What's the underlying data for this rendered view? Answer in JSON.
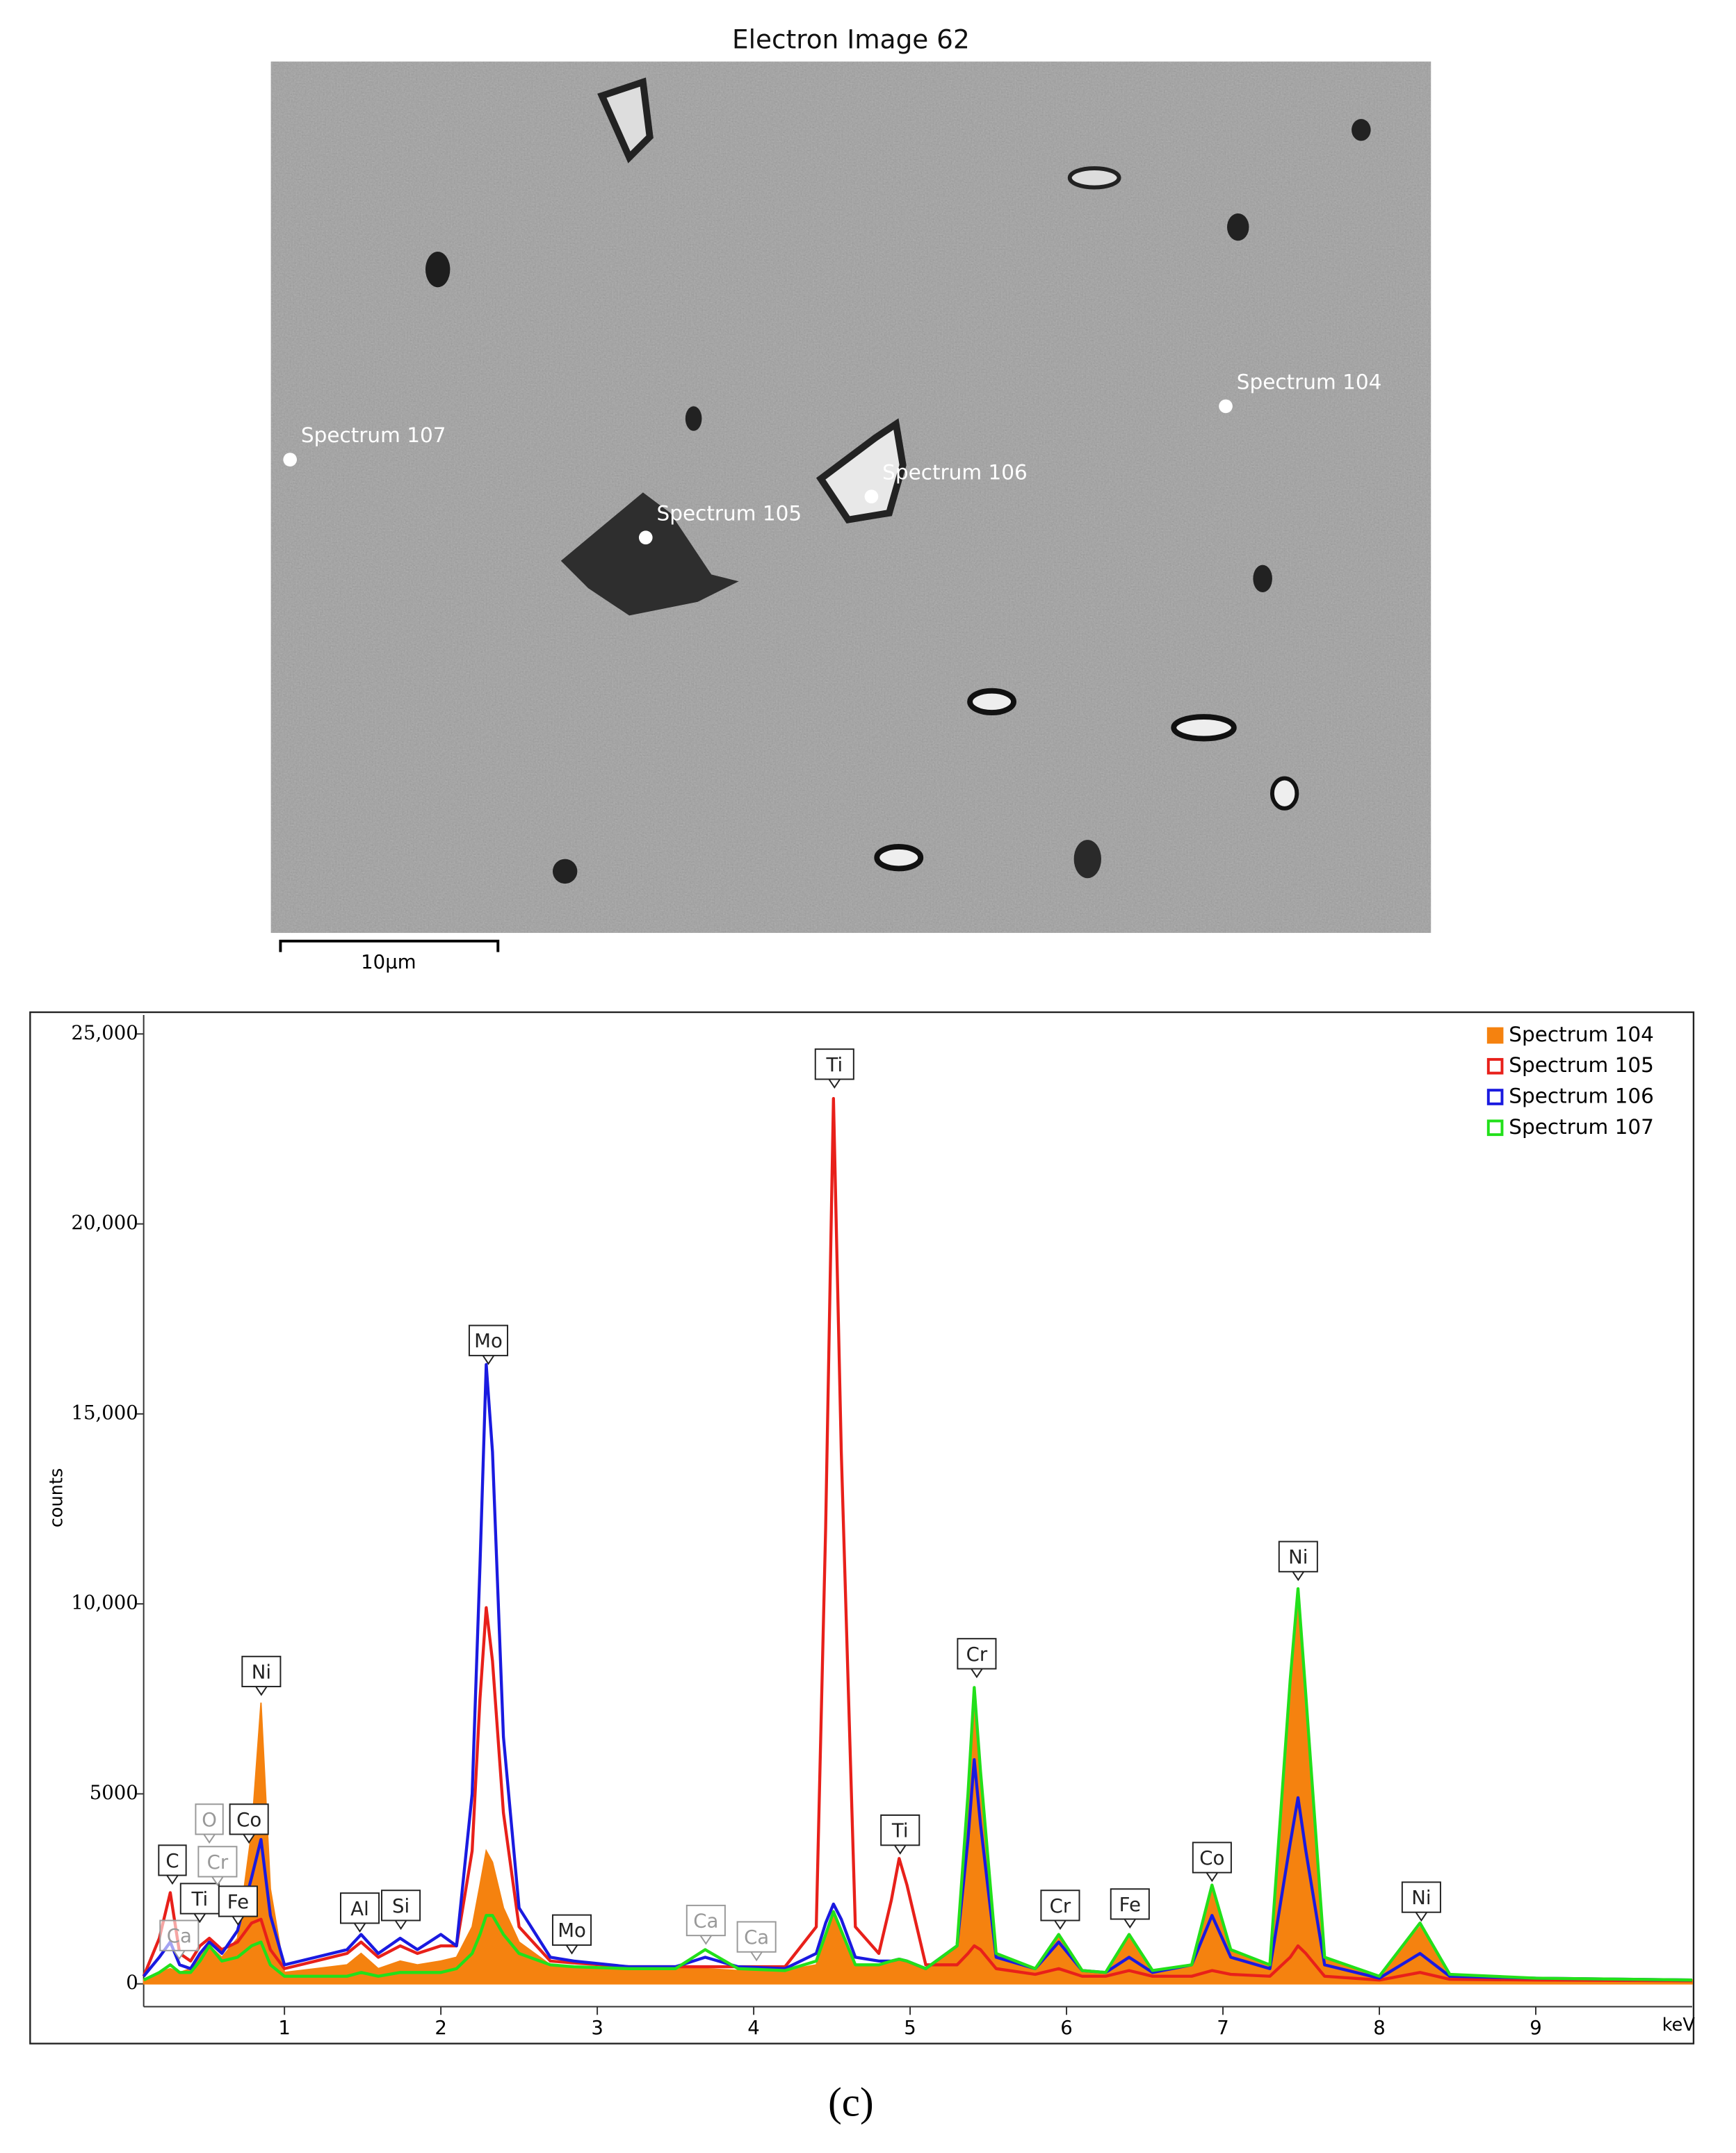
{
  "electron_image": {
    "title": "Electron Image 62",
    "spectrum_labels": [
      "Spectrum 104",
      "Spectrum 105",
      "Spectrum 106",
      "Spectrum 107"
    ],
    "scale_bar": "10µm"
  },
  "chart_data": {
    "type": "line",
    "y_label": "counts",
    "x_label": "keV",
    "x": [
      0.1,
      0.2,
      0.27,
      0.33,
      0.4,
      0.46,
      0.52,
      0.6,
      0.7,
      0.79,
      0.85,
      0.91,
      1.0,
      1.2,
      1.4,
      1.49,
      1.6,
      1.74,
      1.85,
      2.0,
      2.1,
      2.2,
      2.25,
      2.29,
      2.33,
      2.4,
      2.5,
      2.7,
      2.85,
      3.2,
      3.5,
      3.69,
      3.9,
      4.2,
      4.4,
      4.46,
      4.51,
      4.56,
      4.65,
      4.8,
      4.88,
      4.93,
      4.98,
      5.1,
      5.3,
      5.37,
      5.41,
      5.45,
      5.55,
      5.8,
      5.95,
      6.1,
      6.25,
      6.4,
      6.55,
      6.8,
      6.93,
      7.05,
      7.3,
      7.43,
      7.48,
      7.53,
      7.65,
      8.0,
      8.26,
      8.45,
      9.0,
      10.0
    ],
    "series": [
      {
        "name": "Spectrum 104",
        "color": "#f5820f",
        "area": true,
        "values": [
          100,
          300,
          400,
          300,
          400,
          800,
          1000,
          700,
          1200,
          4000,
          7400,
          2500,
          300,
          400,
          500,
          800,
          400,
          600,
          500,
          600,
          700,
          1500,
          2600,
          3500,
          3200,
          2000,
          1100,
          500,
          450,
          400,
          400,
          400,
          350,
          350,
          500,
          1300,
          1900,
          1400,
          500,
          500,
          550,
          600,
          550,
          400,
          1000,
          5000,
          7700,
          5500,
          800,
          400,
          1300,
          350,
          300,
          1200,
          350,
          500,
          2500,
          900,
          500,
          8000,
          10300,
          7500,
          700,
          200,
          1500,
          250,
          150,
          100
        ]
      },
      {
        "name": "Spectrum 105",
        "color": "#e8201a",
        "area": false,
        "values": [
          200,
          1200,
          2400,
          800,
          600,
          1000,
          1200,
          900,
          1100,
          1600,
          1700,
          900,
          400,
          600,
          800,
          1100,
          700,
          1000,
          800,
          1000,
          1000,
          3500,
          7500,
          9900,
          8500,
          4500,
          1500,
          600,
          550,
          450,
          450,
          450,
          450,
          450,
          1500,
          12000,
          23300,
          14000,
          1500,
          800,
          2200,
          3300,
          2600,
          500,
          500,
          800,
          1000,
          900,
          400,
          250,
          400,
          200,
          200,
          350,
          200,
          200,
          350,
          250,
          200,
          700,
          1000,
          800,
          200,
          100,
          300,
          120,
          100,
          80
        ]
      },
      {
        "name": "Spectrum 106",
        "color": "#1a1ae0",
        "area": false,
        "values": [
          200,
          700,
          1100,
          500,
          400,
          800,
          1100,
          800,
          1400,
          2800,
          3800,
          1800,
          500,
          700,
          900,
          1300,
          800,
          1200,
          900,
          1300,
          1000,
          5000,
          11000,
          16300,
          14000,
          6500,
          2000,
          700,
          600,
          450,
          450,
          700,
          450,
          400,
          800,
          1600,
          2100,
          1700,
          700,
          600,
          600,
          650,
          600,
          400,
          1000,
          3800,
          5900,
          4200,
          700,
          400,
          1100,
          350,
          300,
          700,
          300,
          500,
          1800,
          700,
          400,
          3700,
          4900,
          3500,
          500,
          150,
          800,
          200,
          150,
          100
        ]
      },
      {
        "name": "Spectrum 107",
        "color": "#22e01a",
        "area": false,
        "values": [
          100,
          300,
          500,
          300,
          300,
          600,
          1000,
          600,
          700,
          1000,
          1100,
          500,
          200,
          200,
          200,
          300,
          200,
          300,
          300,
          300,
          400,
          800,
          1300,
          1800,
          1800,
          1300,
          800,
          500,
          450,
          400,
          400,
          900,
          400,
          350,
          600,
          1300,
          1900,
          1400,
          500,
          500,
          600,
          650,
          600,
          400,
          1000,
          5000,
          7800,
          5600,
          800,
          400,
          1300,
          350,
          300,
          1300,
          350,
          500,
          2600,
          900,
          500,
          8000,
          10400,
          7600,
          700,
          200,
          1600,
          250,
          150,
          100
        ]
      }
    ],
    "xlim": [
      0.1,
      10.0
    ],
    "xticks": [
      1,
      2,
      3,
      4,
      5,
      6,
      7,
      8,
      9
    ],
    "ylim": [
      -600,
      25500
    ],
    "yticks": [
      0,
      5000,
      {
        "value": 10000,
        "label": "10,000"
      },
      {
        "value": 15000,
        "label": "15,000"
      },
      {
        "value": 20000,
        "label": "20,000"
      },
      {
        "value": 25000,
        "label": "25,000"
      }
    ],
    "legend": "top-right",
    "annotations": [
      "C",
      "Ca",
      "Ti",
      "O",
      "Cr",
      "Fe",
      "Co",
      "Ni",
      "Al",
      "Si",
      "Mo",
      "Mo",
      "Ca",
      "Ca",
      "Ti",
      "Ti",
      "Cr",
      "Cr",
      "Fe",
      "Co",
      "Ni",
      "Ni"
    ]
  },
  "caption": "(c)"
}
